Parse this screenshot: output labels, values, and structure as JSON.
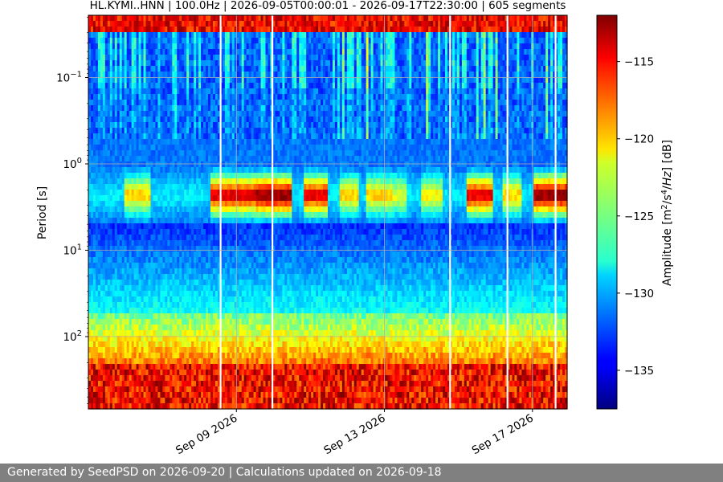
{
  "chart_data": {
    "type": "heatmap",
    "title": "HL.KYMI..HNN | 100.0Hz | 2026-09-05T00:00:01 - 2026-09-17T22:30:00 | 605 segments",
    "xlabel": "",
    "ylabel": "Period [s]",
    "x_range": [
      "2026-09-05T00:00:01",
      "2026-09-17T22:30:00"
    ],
    "x_ticks": [
      "Sep 09 2026",
      "Sep 13 2026",
      "Sep 17 2026"
    ],
    "y_scale": "log",
    "y_range": [
      0.02,
      700
    ],
    "y_ticks": [
      {
        "base": "10",
        "exp": "−1"
      },
      {
        "base": "10",
        "exp": "0"
      },
      {
        "base": "10",
        "exp": "1"
      },
      {
        "base": "10",
        "exp": "2"
      }
    ],
    "grid": true,
    "colorbar": {
      "label": "Amplitude [m²/s⁴/Hz] [dB]",
      "colormap": "jet",
      "range": [
        -137.5,
        -112
      ],
      "ticks": [
        "−115",
        "−120",
        "−125",
        "−130",
        "−135"
      ]
    },
    "segments": 605,
    "sample_rate": "100.0Hz",
    "station": "HL.KYMI..HNN"
  },
  "footer": {
    "text": "Generated by SeedPSD on 2026-09-20 | Calculations updated on 2026-09-18"
  }
}
